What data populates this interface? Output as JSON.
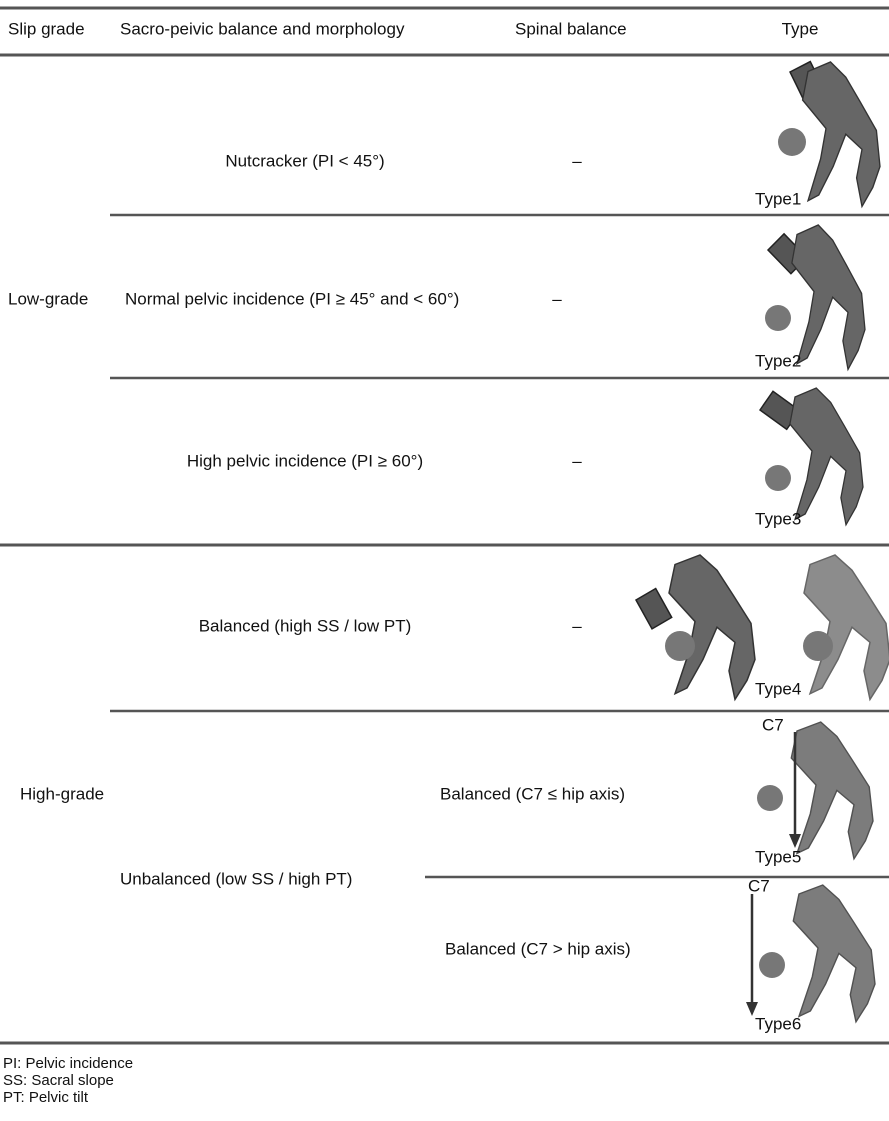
{
  "table": {
    "headers": [
      "Slip grade",
      "Sacro-peivic balance and morphology",
      "Spinal balance",
      "Type"
    ],
    "groups": [
      {
        "slip_grade": "Low-grade",
        "rows": [
          {
            "morphology": "Nutcracker (PI < 45°)",
            "spinal_balance": "–",
            "type": "Type1"
          },
          {
            "morphology": "Normal pelvic incidence (PI ≥ 45° and < 60°)",
            "spinal_balance": "–",
            "type": "Type2"
          },
          {
            "morphology": "High pelvic incidence (PI ≥ 60°)",
            "spinal_balance": "–",
            "type": "Type3"
          }
        ]
      },
      {
        "slip_grade": "High-grade",
        "rows": [
          {
            "morphology": "Balanced (high SS / low PT)",
            "spinal_balance": "–",
            "type": "Type4"
          },
          {
            "morphology": "Unbalanced (low SS / high PT)",
            "subrows": [
              {
                "spinal_balance": "Balanced (C7 ≤ hip axis)",
                "marker": "C7",
                "type": "Type5"
              },
              {
                "spinal_balance": "Balanced (C7 > hip axis)",
                "marker": "C7",
                "type": "Type6"
              }
            ]
          }
        ]
      }
    ]
  },
  "footnotes": [
    "PI: Pelvic incidence",
    "SS: Sacral slope",
    "PT: Pelvic tilt"
  ]
}
